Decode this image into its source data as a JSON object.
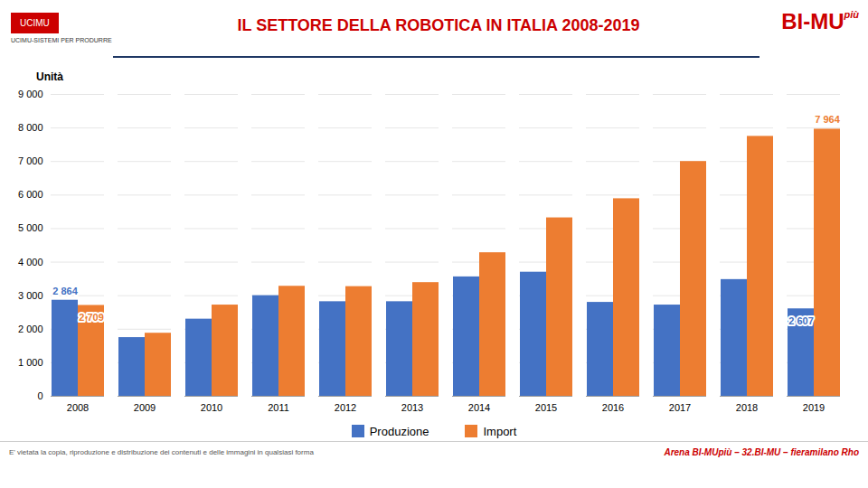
{
  "chart_data": {
    "type": "bar",
    "title": "IL SETTORE DELLA ROBOTICA IN ITALIA 2008-2019",
    "y_label": "Unità",
    "categories": [
      "2008",
      "2009",
      "2010",
      "2011",
      "2012",
      "2013",
      "2014",
      "2015",
      "2016",
      "2017",
      "2018",
      "2019"
    ],
    "series": [
      {
        "name": "Produzione",
        "color": "#4472C4",
        "values": [
          2864,
          1750,
          2300,
          3000,
          2820,
          2820,
          3560,
          3700,
          2800,
          2720,
          3480,
          2607
        ]
      },
      {
        "name": "Import",
        "color": "#ED7D31",
        "values": [
          2709,
          1880,
          2720,
          3280,
          3270,
          3390,
          4280,
          5320,
          5890,
          7000,
          7750,
          7964
        ]
      }
    ],
    "ylim": [
      0,
      9000
    ],
    "yticks": [
      0,
      {
        "value": 1000,
        "label": "1 000"
      },
      {
        "value": 2000,
        "label": "2 000"
      },
      {
        "value": 3000,
        "label": "3 000"
      },
      {
        "value": 4000,
        "label": "4 000"
      },
      {
        "value": 5000,
        "label": "5 000"
      },
      {
        "value": 6000,
        "label": "6 000"
      },
      {
        "value": 7000,
        "label": "7 000"
      },
      {
        "value": 8000,
        "label": "8 000"
      },
      {
        "value": 9000,
        "label": "9 000"
      }
    ],
    "grid": true,
    "legend": "bottom",
    "annotations": [
      {
        "category": "2008",
        "series": "Produzione",
        "text": "2 864"
      },
      {
        "category": "2008",
        "series": "Import",
        "text": "2 709"
      },
      {
        "category": "2019",
        "series": "Import",
        "text": "7 964"
      },
      {
        "category": "2019",
        "series": "Produzione",
        "text": "2 607"
      }
    ],
    "header_left": [
      "UCIMU",
      "UCIMU-SISTEMI PER PRODURRE"
    ],
    "header_right": [
      "BI-MU",
      "più"
    ],
    "footer": [
      "E' vietata la copia, riproduzione e distribuzione dei contenuti e delle immagini in qualsiasi forma",
      "Arena BI-MUpiù – 32.BI-MU – fieramilano Rho"
    ]
  }
}
